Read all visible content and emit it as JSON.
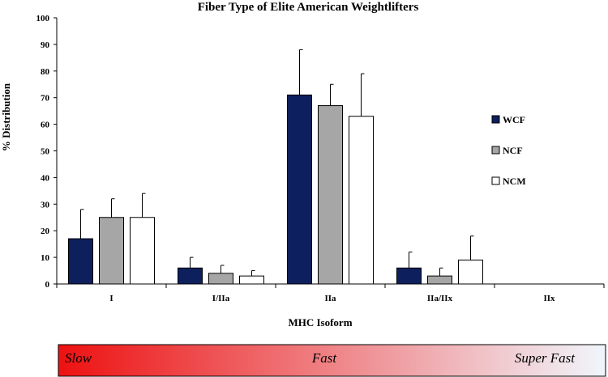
{
  "chart_data": {
    "type": "bar",
    "title": "Fiber Type of Elite American Weightlifters",
    "xlabel": "MHC Isoform",
    "ylabel": "% Distribution",
    "categories": [
      "I",
      "I/IIa",
      "IIa",
      "IIa/IIx",
      "IIx"
    ],
    "ylim": [
      0,
      100
    ],
    "yticks": [
      0,
      10,
      20,
      30,
      40,
      50,
      60,
      70,
      80,
      90,
      100
    ],
    "grid": false,
    "legend_position": "right",
    "series": [
      {
        "name": "WCF",
        "color": "#0d1f5c",
        "values": [
          17,
          6,
          71,
          6,
          0
        ],
        "errors": [
          11,
          4,
          17,
          6,
          0
        ]
      },
      {
        "name": "NCF",
        "color": "#a6a6a6",
        "values": [
          25,
          4,
          67,
          3,
          0
        ],
        "errors": [
          7,
          3,
          8,
          3,
          0
        ]
      },
      {
        "name": "NCM",
        "color": "#ffffff",
        "values": [
          25,
          3,
          63,
          9,
          0
        ],
        "errors": [
          9,
          2,
          16,
          9,
          0
        ]
      }
    ]
  },
  "speed_scale": {
    "labels": [
      "Slow",
      "Fast",
      "Super Fast"
    ],
    "gradient_colors": [
      "#ee1111",
      "#f0f6fc"
    ]
  }
}
